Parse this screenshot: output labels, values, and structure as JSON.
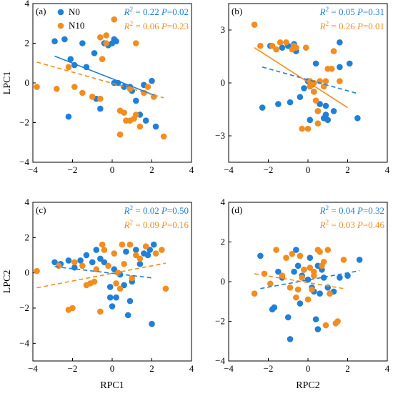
{
  "colors": {
    "n0": "#1f7fd9",
    "n10": "#f28d1e"
  },
  "chart_data": [
    {
      "id": "a",
      "type": "scatter",
      "panel_label": "(a)",
      "xlabel": "",
      "ylabel": "LPC1",
      "xlim": [
        -4,
        4
      ],
      "ylim": [
        -4,
        4
      ],
      "xticks": [
        -4,
        -2,
        0,
        2,
        4
      ],
      "yticks": [
        -4,
        -2,
        0,
        2,
        4
      ],
      "legend": {
        "placement": "top-left",
        "entries": [
          "N0",
          "N10"
        ]
      },
      "stats": [
        {
          "series": "N0",
          "r2": "R² = 0.22",
          "p": "P=0.02"
        },
        {
          "series": "N10",
          "r2": "R² = 0.06",
          "p": "P=0.23"
        }
      ],
      "series": [
        {
          "name": "N0",
          "points": [
            [
              -2.9,
              2.1
            ],
            [
              -2.4,
              2.2
            ],
            [
              -2.2,
              -1.7
            ],
            [
              -2.1,
              1.2
            ],
            [
              -1.9,
              0.9
            ],
            [
              -1.5,
              2.0
            ],
            [
              -1.3,
              0.8
            ],
            [
              -0.9,
              1.5
            ],
            [
              -0.8,
              -0.8
            ],
            [
              -0.6,
              -1.3
            ],
            [
              -0.4,
              2.0
            ],
            [
              -0.2,
              1.9
            ],
            [
              0.0,
              2.0
            ],
            [
              0.1,
              2.2
            ],
            [
              0.2,
              2.1
            ],
            [
              0.1,
              0.0
            ],
            [
              0.3,
              0.0
            ],
            [
              0.6,
              -0.2
            ],
            [
              0.9,
              -0.2
            ],
            [
              1.0,
              -0.4
            ],
            [
              1.2,
              -0.9
            ],
            [
              1.6,
              -0.1
            ],
            [
              1.7,
              -1.9
            ],
            [
              2.0,
              0.1
            ],
            [
              2.2,
              -2.2
            ],
            [
              1.4,
              -1.6
            ]
          ],
          "fit": [
            [
              -2.9,
              1.35
            ],
            [
              2.2,
              -0.65
            ]
          ]
        },
        {
          "name": "N10",
          "points": [
            [
              -3.8,
              -0.2
            ],
            [
              -2.8,
              -0.3
            ],
            [
              -2.2,
              0.8
            ],
            [
              -1.9,
              -0.2
            ],
            [
              -1.5,
              -0.5
            ],
            [
              -1.0,
              -0.7
            ],
            [
              -0.6,
              -0.8
            ],
            [
              -0.5,
              1.2
            ],
            [
              -0.3,
              2.4
            ],
            [
              -0.3,
              2.0
            ],
            [
              0.1,
              3.2
            ],
            [
              0.4,
              -1.4
            ],
            [
              0.4,
              -2.6
            ],
            [
              0.6,
              -1.5
            ],
            [
              0.7,
              -1.9
            ],
            [
              0.9,
              -1.9
            ],
            [
              1.1,
              -1.8
            ],
            [
              1.2,
              2.0
            ],
            [
              1.2,
              -1.6
            ],
            [
              1.4,
              -2.2
            ],
            [
              1.6,
              -0.5
            ],
            [
              1.8,
              -0.2
            ],
            [
              2.1,
              -0.7
            ],
            [
              2.6,
              -2.7
            ],
            [
              -0.6,
              2.3
            ],
            [
              0.9,
              -0.3
            ]
          ],
          "fit": [
            [
              -3.8,
              1.05
            ],
            [
              2.6,
              -0.75
            ]
          ]
        }
      ]
    },
    {
      "id": "b",
      "type": "scatter",
      "panel_label": "(b)",
      "xlabel": "",
      "ylabel": "",
      "xlim": [
        -4,
        4
      ],
      "ylim": [
        -4.5,
        4.5
      ],
      "xticks": [
        -4,
        -2,
        0,
        2,
        4
      ],
      "yticks": [
        -3,
        0,
        3
      ],
      "stats": [
        {
          "series": "N0",
          "r2": "R² = 0.05",
          "p": "P=0.31"
        },
        {
          "series": "N10",
          "r2": "R² = 0.26",
          "p": "P=0.01"
        }
      ],
      "series": [
        {
          "name": "N0",
          "points": [
            [
              -2.3,
              -1.4
            ],
            [
              -1.9,
              2.1
            ],
            [
              -1.5,
              -1.2
            ],
            [
              -1.3,
              2.0
            ],
            [
              -1.0,
              2.1
            ],
            [
              -0.9,
              -1.1
            ],
            [
              -0.7,
              2.2
            ],
            [
              -0.6,
              1.8
            ],
            [
              -0.4,
              -0.8
            ],
            [
              -0.2,
              -0.3
            ],
            [
              0.0,
              0.1
            ],
            [
              0.1,
              -2.1
            ],
            [
              0.2,
              -0.1
            ],
            [
              0.3,
              -0.5
            ],
            [
              0.4,
              1.1
            ],
            [
              0.5,
              -1.6
            ],
            [
              0.6,
              -1.2
            ],
            [
              0.8,
              -2.0
            ],
            [
              0.9,
              -1.3
            ],
            [
              1.0,
              -2.1
            ],
            [
              1.3,
              -1.6
            ],
            [
              1.6,
              0.9
            ],
            [
              1.6,
              2.3
            ],
            [
              2.1,
              1.1
            ],
            [
              2.5,
              -2.0
            ],
            [
              0.9,
              -1.8
            ]
          ],
          "fit": [
            [
              -2.3,
              0.9
            ],
            [
              2.5,
              -0.6
            ]
          ]
        },
        {
          "name": "N10",
          "points": [
            [
              -2.7,
              3.3
            ],
            [
              -2.4,
              2.1
            ],
            [
              -1.8,
              2.1
            ],
            [
              -1.6,
              1.9
            ],
            [
              -1.4,
              2.3
            ],
            [
              -1.1,
              2.3
            ],
            [
              -0.8,
              1.9
            ],
            [
              -0.7,
              2.1
            ],
            [
              -0.6,
              2.0
            ],
            [
              -0.3,
              -2.6
            ],
            [
              -0.1,
              2.0
            ],
            [
              0.0,
              -2.6
            ],
            [
              0.1,
              0.1
            ],
            [
              0.3,
              -0.5
            ],
            [
              0.4,
              -1.0
            ],
            [
              0.5,
              -2.3
            ],
            [
              0.6,
              0.1
            ],
            [
              0.8,
              -0.2
            ],
            [
              0.9,
              0.1
            ],
            [
              1.0,
              0.8
            ],
            [
              1.2,
              0.8
            ],
            [
              1.3,
              1.8
            ],
            [
              1.6,
              0.1
            ],
            [
              0.3,
              0.0
            ],
            [
              0.1,
              -0.2
            ],
            [
              0.5,
              -1.6
            ]
          ],
          "fit": [
            [
              -2.7,
              2.0
            ],
            [
              2.0,
              -1.4
            ]
          ]
        }
      ]
    },
    {
      "id": "c",
      "type": "scatter",
      "panel_label": "(c)",
      "xlabel": "RPC1",
      "ylabel": "LPC2",
      "xlim": [
        -4,
        4
      ],
      "ylim": [
        -5,
        4
      ],
      "xticks": [
        -4,
        -2,
        0,
        2,
        4
      ],
      "yticks": [
        -4,
        -2,
        0,
        2,
        4
      ],
      "stats": [
        {
          "series": "N0",
          "r2": "R² = 0.02",
          "p": "P=0.50"
        },
        {
          "series": "N10",
          "r2": "R² = 0.09",
          "p": "P=0.16"
        }
      ],
      "series": [
        {
          "name": "N0",
          "points": [
            [
              -2.9,
              0.6
            ],
            [
              -2.6,
              0.5
            ],
            [
              -2.2,
              0.7
            ],
            [
              -1.9,
              0.3
            ],
            [
              -1.6,
              0.7
            ],
            [
              -1.3,
              1.0
            ],
            [
              -1.0,
              0.6
            ],
            [
              -0.8,
              1.3
            ],
            [
              -0.6,
              0.8
            ],
            [
              -0.4,
              0.6
            ],
            [
              -0.1,
              -1.4
            ],
            [
              -0.1,
              -0.8
            ],
            [
              0.0,
              -1.9
            ],
            [
              0.1,
              0.2
            ],
            [
              0.2,
              -1.4
            ],
            [
              0.4,
              -0.1
            ],
            [
              0.6,
              -0.7
            ],
            [
              0.7,
              1.2
            ],
            [
              0.9,
              -1.6
            ],
            [
              1.0,
              -0.5
            ],
            [
              1.2,
              1.3
            ],
            [
              1.4,
              0.5
            ],
            [
              1.6,
              1.1
            ],
            [
              1.8,
              1.0
            ],
            [
              1.9,
              1.3
            ],
            [
              2.0,
              -2.9
            ],
            [
              2.1,
              1.6
            ],
            [
              0.8,
              -2.4
            ]
          ],
          "fit": [
            [
              -2.9,
              0.35
            ],
            [
              2.1,
              -0.3
            ]
          ]
        },
        {
          "name": "N10",
          "points": [
            [
              -3.8,
              0.1
            ],
            [
              -2.7,
              0.4
            ],
            [
              -2.2,
              -2.1
            ],
            [
              -2.0,
              -2.0
            ],
            [
              -1.9,
              0.6
            ],
            [
              -1.5,
              0.4
            ],
            [
              -1.3,
              -0.7
            ],
            [
              -1.1,
              -0.6
            ],
            [
              -0.9,
              -0.5
            ],
            [
              -0.6,
              -2.2
            ],
            [
              -0.5,
              1.6
            ],
            [
              -0.4,
              1.3
            ],
            [
              -0.2,
              0.4
            ],
            [
              0.1,
              1.1
            ],
            [
              0.2,
              -0.6
            ],
            [
              0.4,
              -0.9
            ],
            [
              0.5,
              1.6
            ],
            [
              0.6,
              0.5
            ],
            [
              0.9,
              1.6
            ],
            [
              1.0,
              -0.3
            ],
            [
              1.2,
              1.0
            ],
            [
              1.4,
              0.8
            ],
            [
              1.7,
              1.5
            ],
            [
              2.2,
              1.1
            ],
            [
              2.5,
              1.3
            ],
            [
              2.7,
              -0.9
            ],
            [
              -0.8,
              0.2
            ],
            [
              0.3,
              0.0
            ]
          ],
          "fit": [
            [
              -3.8,
              -0.85
            ],
            [
              2.7,
              0.55
            ]
          ]
        }
      ]
    },
    {
      "id": "d",
      "type": "scatter",
      "panel_label": "(d)",
      "xlabel": "RPC2",
      "ylabel": "",
      "xlim": [
        -4,
        4
      ],
      "ylim": [
        -4,
        4
      ],
      "xticks": [
        -4,
        -2,
        0,
        2,
        4
      ],
      "yticks": [
        -4,
        -2,
        0,
        2,
        4
      ],
      "stats": [
        {
          "series": "N0",
          "r2": "R² = 0.04",
          "p": "P=0.32"
        },
        {
          "series": "N10",
          "r2": "R² = 0.03",
          "p": "P=0.46"
        }
      ],
      "series": [
        {
          "name": "N0",
          "points": [
            [
              -2.4,
              1.3
            ],
            [
              -1.8,
              -1.4
            ],
            [
              -1.7,
              -1.3
            ],
            [
              -1.5,
              0.5
            ],
            [
              -1.3,
              0.2
            ],
            [
              -1.0,
              -1.8
            ],
            [
              -0.9,
              -2.9
            ],
            [
              -0.7,
              0.5
            ],
            [
              -0.5,
              0.8
            ],
            [
              -0.4,
              -1.1
            ],
            [
              -0.3,
              0.3
            ],
            [
              -0.2,
              0.6
            ],
            [
              0.0,
              0.1
            ],
            [
              0.1,
              1.2
            ],
            [
              0.2,
              -0.3
            ],
            [
              0.3,
              -0.5
            ],
            [
              0.4,
              -1.9
            ],
            [
              0.5,
              -2.4
            ],
            [
              0.6,
              -0.6
            ],
            [
              0.7,
              0.6
            ],
            [
              0.8,
              0.2
            ],
            [
              1.0,
              -0.3
            ],
            [
              1.3,
              -0.5
            ],
            [
              1.6,
              0.2
            ],
            [
              2.0,
              0.3
            ],
            [
              2.6,
              1.1
            ],
            [
              0.5,
              0.8
            ],
            [
              -0.6,
              1.6
            ]
          ],
          "fit": [
            [
              -2.4,
              -0.35
            ],
            [
              2.6,
              0.55
            ]
          ]
        },
        {
          "name": "N10",
          "points": [
            [
              -2.7,
              -0.6
            ],
            [
              -2.2,
              0.4
            ],
            [
              -1.9,
              -0.1
            ],
            [
              -1.6,
              1.6
            ],
            [
              -1.3,
              0.3
            ],
            [
              -1.1,
              1.2
            ],
            [
              -0.9,
              -0.3
            ],
            [
              -0.8,
              1.4
            ],
            [
              -0.6,
              -0.8
            ],
            [
              -0.5,
              -0.4
            ],
            [
              -0.4,
              1.3
            ],
            [
              -0.3,
              0.2
            ],
            [
              -0.2,
              0.6
            ],
            [
              0.0,
              -0.9
            ],
            [
              0.1,
              0.7
            ],
            [
              0.2,
              -0.4
            ],
            [
              0.3,
              0.5
            ],
            [
              0.5,
              1.6
            ],
            [
              0.6,
              1.5
            ],
            [
              0.7,
              0.8
            ],
            [
              0.8,
              1.0
            ],
            [
              0.9,
              -2.2
            ],
            [
              1.0,
              1.6
            ],
            [
              1.1,
              -0.6
            ],
            [
              1.4,
              -2.1
            ],
            [
              1.5,
              -2.0
            ],
            [
              1.8,
              1.1
            ],
            [
              0.3,
              0.3
            ]
          ],
          "fit": [
            [
              -2.7,
              0.4
            ],
            [
              1.8,
              -0.35
            ]
          ]
        }
      ]
    }
  ]
}
